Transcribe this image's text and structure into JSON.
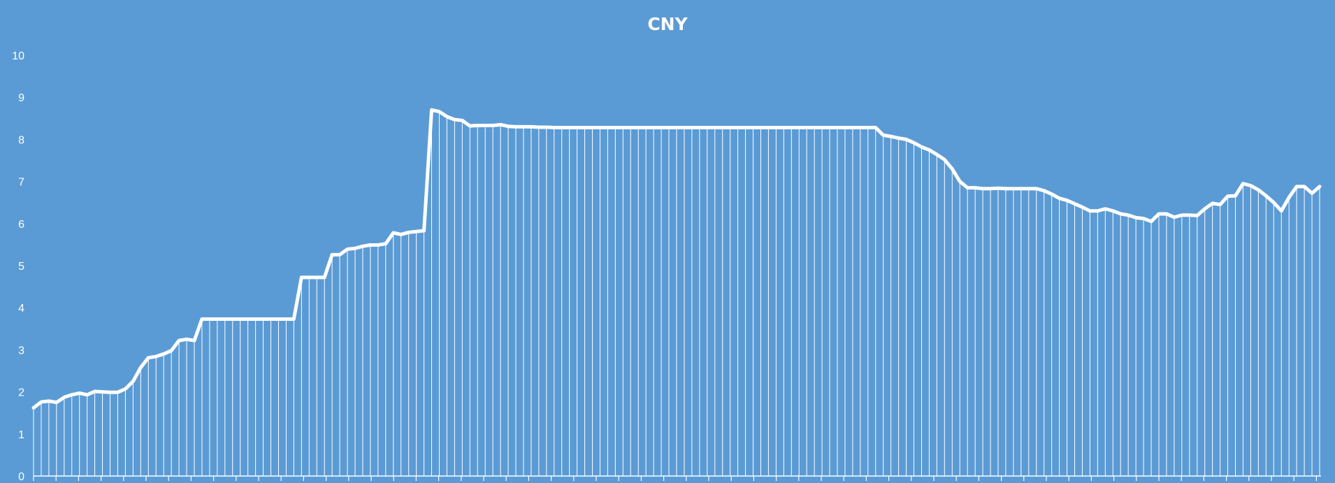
{
  "colors": {
    "background": "#5b9bd5",
    "line": "#ffffff",
    "drop_lines": "#ffffff",
    "text": "#ffffff"
  },
  "chart_data": {
    "type": "line",
    "title": "CNY",
    "xlabel": "",
    "ylabel": "",
    "ylim": [
      0,
      10
    ],
    "y_ticks": [
      "0",
      "1",
      "2",
      "3",
      "4",
      "5",
      "6",
      "7",
      "8",
      "9",
      "10"
    ],
    "grid": false,
    "legend": "none",
    "drop_lines": true,
    "series": [
      {
        "values": [
          1.62,
          1.76,
          1.78,
          1.75,
          1.87,
          1.93,
          1.97,
          1.93,
          2.01,
          2.0,
          1.99,
          1.99,
          2.07,
          2.25,
          2.58,
          2.81,
          2.84,
          2.9,
          2.98,
          3.22,
          3.25,
          3.22,
          3.73,
          3.73,
          3.73,
          3.73,
          3.73,
          3.73,
          3.73,
          3.73,
          3.73,
          3.73,
          3.73,
          3.73,
          3.73,
          4.72,
          4.72,
          4.72,
          4.72,
          5.26,
          5.26,
          5.39,
          5.41,
          5.46,
          5.49,
          5.49,
          5.52,
          5.78,
          5.74,
          5.79,
          5.81,
          5.83,
          8.7,
          8.66,
          8.54,
          8.47,
          8.45,
          8.32,
          8.33,
          8.33,
          8.33,
          8.35,
          8.31,
          8.3,
          8.3,
          8.3,
          8.29,
          8.29,
          8.28,
          8.28,
          8.28,
          8.28,
          8.28,
          8.28,
          8.28,
          8.28,
          8.28,
          8.28,
          8.28,
          8.28,
          8.28,
          8.28,
          8.28,
          8.28,
          8.28,
          8.28,
          8.28,
          8.28,
          8.28,
          8.28,
          8.28,
          8.28,
          8.28,
          8.28,
          8.28,
          8.28,
          8.28,
          8.28,
          8.28,
          8.28,
          8.28,
          8.28,
          8.28,
          8.28,
          8.28,
          8.28,
          8.28,
          8.28,
          8.28,
          8.28,
          8.28,
          8.1,
          8.07,
          8.03,
          8.0,
          7.92,
          7.82,
          7.75,
          7.64,
          7.52,
          7.3,
          7.0,
          6.85,
          6.85,
          6.83,
          6.83,
          6.84,
          6.83,
          6.83,
          6.83,
          6.83,
          6.83,
          6.78,
          6.7,
          6.6,
          6.55,
          6.47,
          6.39,
          6.3,
          6.3,
          6.35,
          6.3,
          6.23,
          6.2,
          6.14,
          6.12,
          6.05,
          6.23,
          6.23,
          6.15,
          6.2,
          6.2,
          6.19,
          6.35,
          6.48,
          6.45,
          6.65,
          6.66,
          6.95,
          6.9,
          6.8,
          6.66,
          6.5,
          6.3,
          6.62,
          6.88,
          6.88,
          6.72,
          6.88
        ]
      }
    ]
  }
}
